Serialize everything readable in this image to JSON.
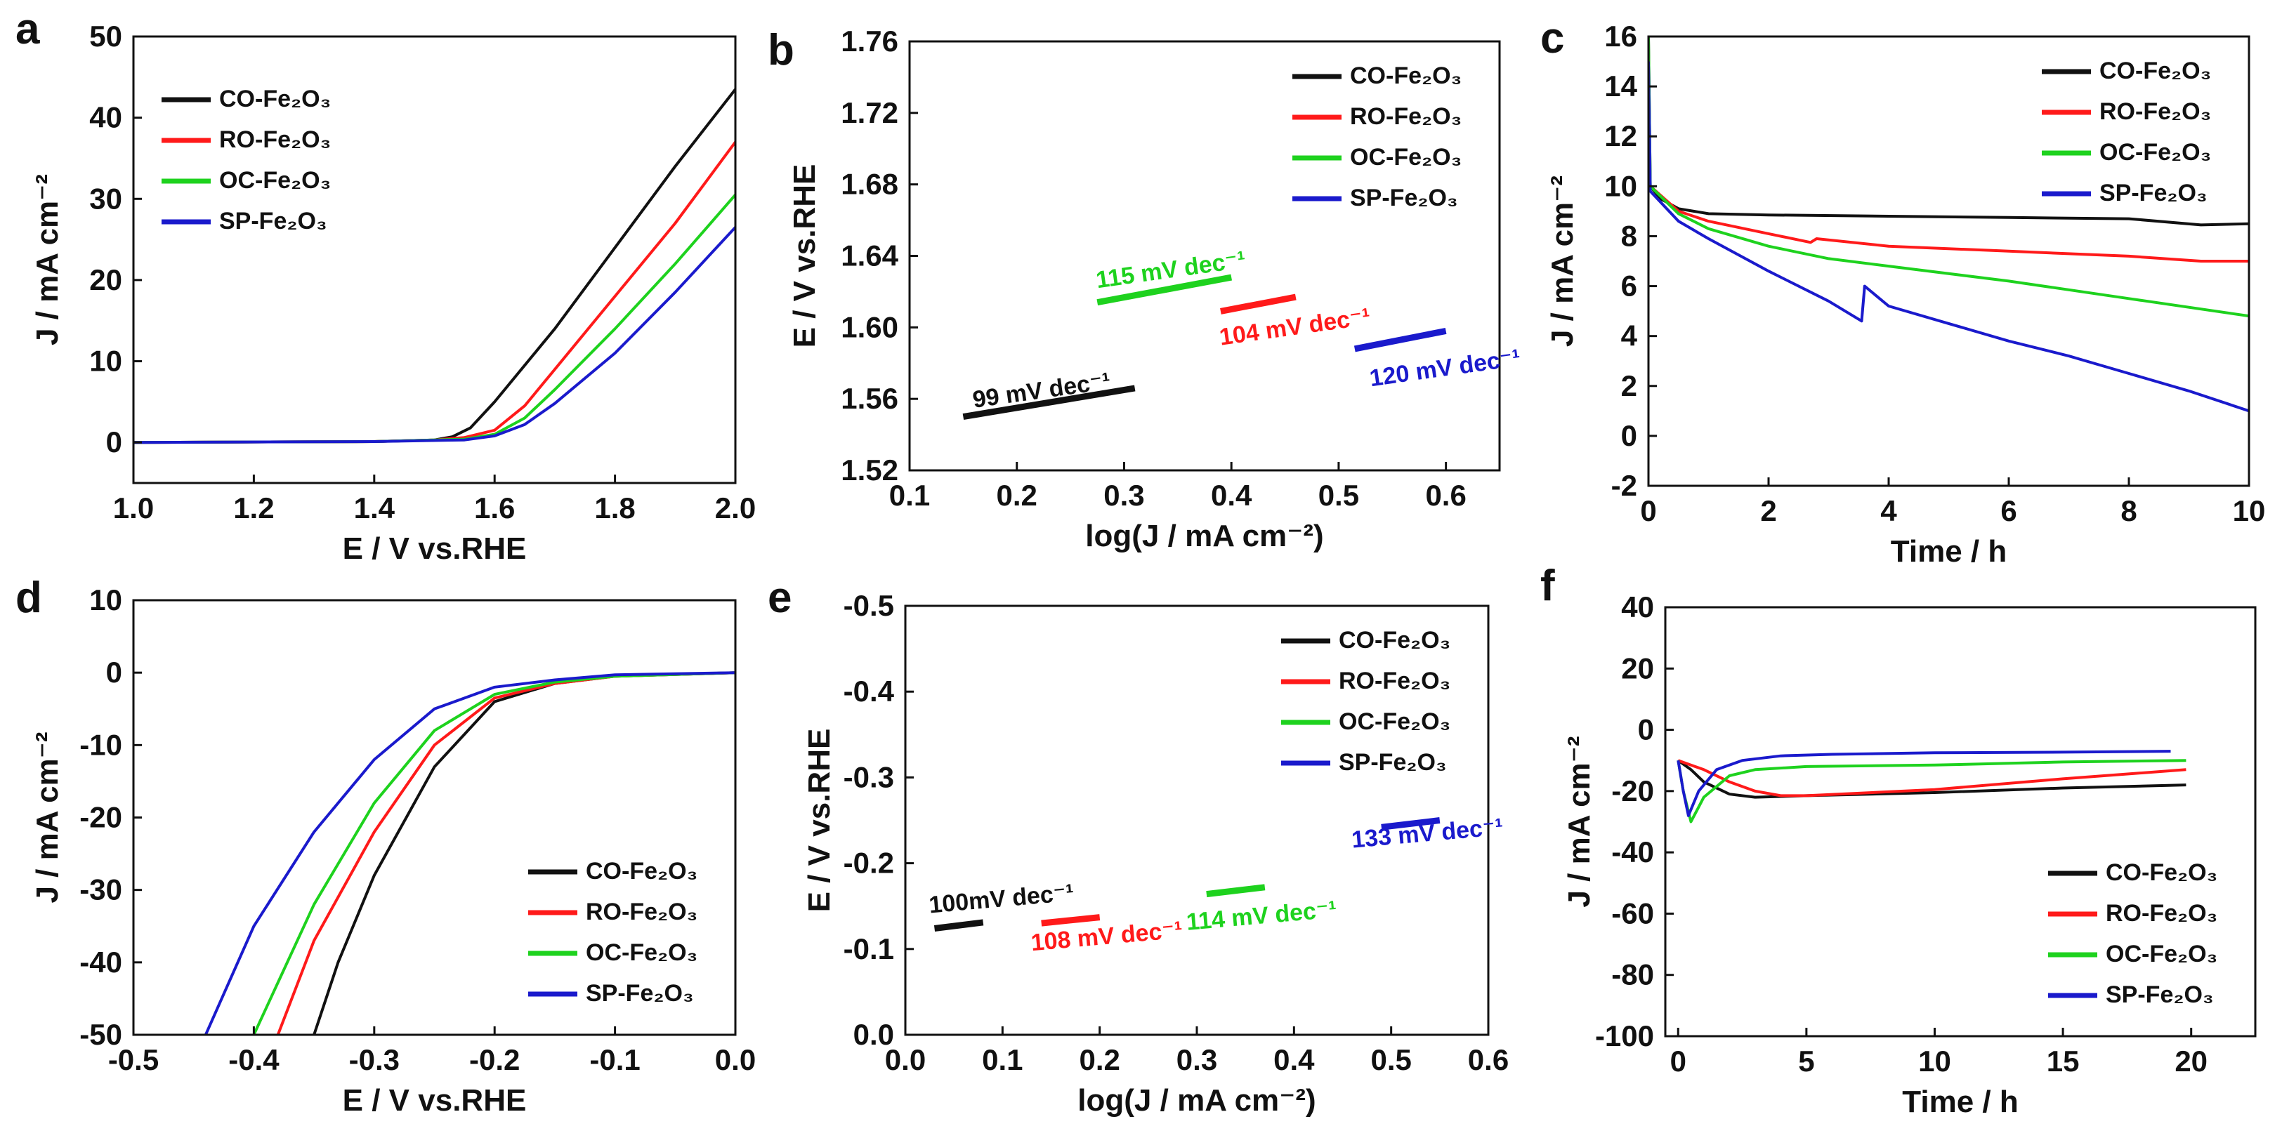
{
  "colors": {
    "CO": "#111111",
    "RO": "#ff1a1a",
    "OC": "#1ed21e",
    "SP": "#1a1acc"
  },
  "chart_data": [
    {
      "id": "a",
      "panel_label": "a",
      "type": "line",
      "xlabel": "E / V vs.RHE",
      "ylabel": "J / mA cm⁻²",
      "xlim": [
        1.0,
        2.0
      ],
      "ylim": [
        -5,
        50
      ],
      "xticks": [
        1.0,
        1.2,
        1.4,
        1.6,
        1.8,
        2.0
      ],
      "xtick_decimals": 1,
      "yticks": [
        0,
        10,
        20,
        30,
        40,
        50
      ],
      "ytick_decimals": 0,
      "legend_position": "upper-left",
      "series": [
        {
          "name": "CO-Fe₂O₃",
          "key": "CO",
          "x": [
            1.0,
            1.4,
            1.5,
            1.53,
            1.56,
            1.6,
            1.7,
            1.8,
            1.9,
            2.0
          ],
          "y": [
            0,
            0.1,
            0.3,
            0.7,
            1.8,
            5,
            14,
            24,
            34,
            43.5
          ]
        },
        {
          "name": "RO-Fe₂O₃",
          "key": "RO",
          "x": [
            1.0,
            1.4,
            1.5,
            1.55,
            1.6,
            1.65,
            1.7,
            1.8,
            1.9,
            2.0
          ],
          "y": [
            0,
            0.1,
            0.3,
            0.6,
            1.5,
            4.5,
            9,
            18,
            27,
            37
          ]
        },
        {
          "name": "OC-Fe₂O₃",
          "key": "OC",
          "x": [
            1.0,
            1.4,
            1.55,
            1.6,
            1.65,
            1.7,
            1.8,
            1.9,
            2.0
          ],
          "y": [
            0,
            0.1,
            0.4,
            1.0,
            3.0,
            6.5,
            14,
            22,
            30.5
          ]
        },
        {
          "name": "SP-Fe₂O₃",
          "key": "SP",
          "x": [
            1.0,
            1.4,
            1.55,
            1.6,
            1.65,
            1.7,
            1.8,
            1.9,
            2.0
          ],
          "y": [
            0,
            0.1,
            0.3,
            0.8,
            2.2,
            4.8,
            11,
            18.5,
            26.5
          ]
        }
      ]
    },
    {
      "id": "b",
      "panel_label": "b",
      "type": "line",
      "xlabel": "log(J / mA cm⁻²)",
      "ylabel": "E / V vs.RHE",
      "xlim": [
        0.1,
        0.65
      ],
      "ylim": [
        1.52,
        1.76
      ],
      "xticks": [
        0.1,
        0.2,
        0.3,
        0.4,
        0.5,
        0.6
      ],
      "xtick_decimals": 1,
      "yticks": [
        1.52,
        1.56,
        1.6,
        1.64,
        1.68,
        1.72,
        1.76
      ],
      "ytick_decimals": 2,
      "legend_position": "upper-right",
      "series": [
        {
          "name": "CO-Fe₂O₃",
          "key": "CO",
          "x": [
            0.15,
            0.31
          ],
          "y": [
            1.55,
            1.566
          ]
        },
        {
          "name": "RO-Fe₂O₃",
          "key": "RO",
          "x": [
            0.39,
            0.46
          ],
          "y": [
            1.609,
            1.617
          ]
        },
        {
          "name": "OC-Fe₂O₃",
          "key": "OC",
          "x": [
            0.275,
            0.4
          ],
          "y": [
            1.614,
            1.628
          ]
        },
        {
          "name": "SP-Fe₂O₃",
          "key": "SP",
          "x": [
            0.515,
            0.6
          ],
          "y": [
            1.588,
            1.598
          ]
        }
      ],
      "annotations": [
        {
          "text": "99 mV dec⁻¹",
          "key": "CO",
          "x": 0.16,
          "y": 1.555,
          "rotate": -8
        },
        {
          "text": "115 mV dec⁻¹",
          "key": "OC",
          "x": 0.275,
          "y": 1.622,
          "rotate": -8
        },
        {
          "text": "104 mV dec⁻¹",
          "key": "RO",
          "x": 0.39,
          "y": 1.59,
          "rotate": -8
        },
        {
          "text": "120 mV dec⁻¹",
          "key": "SP",
          "x": 0.53,
          "y": 1.567,
          "rotate": -8
        }
      ]
    },
    {
      "id": "c",
      "panel_label": "c",
      "type": "line",
      "xlabel": "Time / h",
      "ylabel": "J / mA cm⁻²",
      "xlim": [
        0,
        10
      ],
      "ylim": [
        -2,
        16
      ],
      "xticks": [
        0,
        2,
        4,
        6,
        8,
        10
      ],
      "xtick_decimals": 0,
      "yticks": [
        -2,
        0,
        2,
        4,
        6,
        8,
        10,
        12,
        14,
        16
      ],
      "ytick_decimals": 0,
      "legend_position": "upper-right",
      "series": [
        {
          "name": "CO-Fe₂O₃",
          "key": "CO",
          "x": [
            0,
            0.03,
            0.2,
            0.5,
            1,
            2,
            4,
            6,
            8,
            9.2,
            10
          ],
          "y": [
            16,
            10,
            9.5,
            9.1,
            8.9,
            8.85,
            8.8,
            8.75,
            8.7,
            8.45,
            8.5
          ]
        },
        {
          "name": "RO-Fe₂O₃",
          "key": "RO",
          "x": [
            0,
            0.03,
            0.5,
            1,
            2,
            2.7,
            2.8,
            4,
            6,
            8,
            9.2,
            10
          ],
          "y": [
            12,
            10,
            9.0,
            8.6,
            8.1,
            7.75,
            7.9,
            7.6,
            7.4,
            7.2,
            7.0,
            7.0
          ]
        },
        {
          "name": "OC-Fe₂O₃",
          "key": "OC",
          "x": [
            0,
            0.03,
            0.5,
            1,
            2,
            3,
            4,
            6,
            8,
            10
          ],
          "y": [
            16,
            10,
            8.9,
            8.3,
            7.6,
            7.1,
            6.8,
            6.2,
            5.5,
            4.8
          ]
        },
        {
          "name": "SP-Fe₂O₃",
          "key": "SP",
          "x": [
            0,
            0.03,
            0.5,
            1,
            2,
            3,
            3.55,
            3.6,
            4,
            5,
            6,
            7,
            8,
            9,
            10
          ],
          "y": [
            15,
            9.8,
            8.6,
            7.9,
            6.6,
            5.4,
            4.6,
            6.0,
            5.2,
            4.5,
            3.8,
            3.2,
            2.5,
            1.8,
            1.0
          ]
        }
      ]
    },
    {
      "id": "d",
      "panel_label": "d",
      "type": "line",
      "xlabel": "E / V vs.RHE",
      "ylabel": "J / mA cm⁻²",
      "xlim": [
        -0.5,
        0.0
      ],
      "ylim": [
        -50,
        10
      ],
      "xticks": [
        -0.5,
        -0.4,
        -0.3,
        -0.2,
        -0.1,
        0.0
      ],
      "xtick_decimals": 1,
      "yticks": [
        -50,
        -40,
        -30,
        -20,
        -10,
        0,
        10
      ],
      "ytick_decimals": 0,
      "legend_position": "lower-right",
      "series": [
        {
          "name": "CO-Fe₂O₃",
          "key": "CO",
          "x": [
            0.0,
            -0.1,
            -0.15,
            -0.2,
            -0.25,
            -0.3,
            -0.33,
            -0.35
          ],
          "y": [
            0,
            -0.5,
            -1.5,
            -4,
            -13,
            -28,
            -40,
            -50
          ]
        },
        {
          "name": "RO-Fe₂O₃",
          "key": "RO",
          "x": [
            0.0,
            -0.1,
            -0.15,
            -0.2,
            -0.25,
            -0.3,
            -0.35,
            -0.38
          ],
          "y": [
            0,
            -0.5,
            -1.5,
            -3.5,
            -10,
            -22,
            -37,
            -50
          ]
        },
        {
          "name": "OC-Fe₂O₃",
          "key": "OC",
          "x": [
            0.0,
            -0.1,
            -0.15,
            -0.2,
            -0.25,
            -0.3,
            -0.35,
            -0.4
          ],
          "y": [
            0,
            -0.5,
            -1.3,
            -3,
            -8,
            -18,
            -32,
            -50
          ]
        },
        {
          "name": "SP-Fe₂O₃",
          "key": "SP",
          "x": [
            0.0,
            -0.1,
            -0.15,
            -0.2,
            -0.25,
            -0.3,
            -0.35,
            -0.4,
            -0.44
          ],
          "y": [
            0,
            -0.3,
            -1.0,
            -2,
            -5,
            -12,
            -22,
            -35,
            -50
          ]
        }
      ]
    },
    {
      "id": "e",
      "panel_label": "e",
      "type": "line",
      "xlabel": "log(J / mA cm⁻²)",
      "ylabel": "E / V vs.RHE",
      "xlim": [
        0.0,
        0.6
      ],
      "ylim": [
        0.0,
        -0.5
      ],
      "xticks": [
        0.0,
        0.1,
        0.2,
        0.3,
        0.4,
        0.5,
        0.6
      ],
      "xtick_decimals": 1,
      "yticks": [
        0.0,
        -0.1,
        -0.2,
        -0.3,
        -0.4,
        -0.5
      ],
      "ytick_decimals": 1,
      "legend_position": "upper-right",
      "series": [
        {
          "name": "CO-Fe₂O₃",
          "key": "CO",
          "x": [
            0.03,
            0.08
          ],
          "y": [
            -0.124,
            -0.131
          ]
        },
        {
          "name": "RO-Fe₂O₃",
          "key": "RO",
          "x": [
            0.14,
            0.2
          ],
          "y": [
            -0.13,
            -0.137
          ]
        },
        {
          "name": "OC-Fe₂O₃",
          "key": "OC",
          "x": [
            0.31,
            0.37
          ],
          "y": [
            -0.164,
            -0.172
          ]
        },
        {
          "name": "SP-Fe₂O₃",
          "key": "SP",
          "x": [
            0.49,
            0.55
          ],
          "y": [
            -0.242,
            -0.25
          ]
        }
      ],
      "annotations": [
        {
          "text": "100mV dec⁻¹",
          "key": "CO",
          "x": 0.025,
          "y": -0.142,
          "rotate": -5
        },
        {
          "text": "108 mV dec⁻¹",
          "key": "RO",
          "x": 0.13,
          "y": -0.098,
          "rotate": -5
        },
        {
          "text": "114 mV dec⁻¹",
          "key": "OC",
          "x": 0.29,
          "y": -0.122,
          "rotate": -5
        },
        {
          "text": "133 mV dec⁻¹",
          "key": "SP",
          "x": 0.46,
          "y": -0.218,
          "rotate": -5
        }
      ]
    },
    {
      "id": "f",
      "panel_label": "f",
      "type": "line",
      "xlabel": "Time / h",
      "ylabel": "J / mA cm⁻²",
      "xlim": [
        -0.5,
        22.5
      ],
      "ylim": [
        -100,
        40
      ],
      "xticks": [
        0,
        5,
        10,
        15,
        20
      ],
      "xtick_decimals": 0,
      "yticks": [
        -100,
        -80,
        -60,
        -40,
        -20,
        0,
        20,
        40
      ],
      "ytick_decimals": 0,
      "legend_position": "lower-right",
      "series": [
        {
          "name": "CO-Fe₂O₃",
          "key": "CO",
          "x": [
            0,
            0.5,
            1,
            2,
            3,
            5,
            10,
            15,
            19.8
          ],
          "y": [
            -10,
            -13,
            -17,
            -21,
            -22,
            -21.5,
            -20.5,
            -19,
            -18
          ]
        },
        {
          "name": "RO-Fe₂O₃",
          "key": "RO",
          "x": [
            0,
            1,
            2,
            3,
            4,
            5,
            10,
            15,
            19.8
          ],
          "y": [
            -10,
            -13,
            -17,
            -20,
            -21.5,
            -21.5,
            -19.5,
            -16,
            -13
          ]
        },
        {
          "name": "OC-Fe₂O₃",
          "key": "OC",
          "x": [
            0,
            0.2,
            0.5,
            1,
            2,
            3,
            5,
            10,
            15,
            19.8
          ],
          "y": [
            -10,
            -20,
            -30,
            -22,
            -15,
            -13,
            -12,
            -11.5,
            -10.5,
            -10
          ]
        },
        {
          "name": "SP-Fe₂O₃",
          "key": "SP",
          "x": [
            0,
            0.2,
            0.4,
            0.8,
            1.5,
            2.5,
            4,
            6,
            10,
            15,
            19.2
          ],
          "y": [
            -10,
            -20,
            -28,
            -20,
            -13,
            -10,
            -8.5,
            -8,
            -7.5,
            -7.3,
            -7
          ]
        }
      ]
    }
  ]
}
